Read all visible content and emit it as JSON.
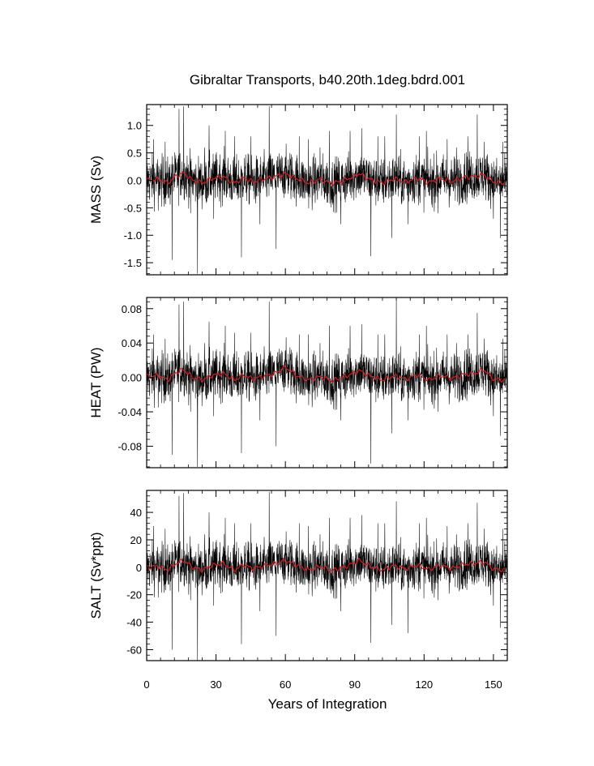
{
  "chart_data": {
    "type": "line",
    "title": "Gibraltar Transports, b40.20th.1deg.bdrd.001",
    "xlabel": "Years of Integration",
    "xlim": [
      0,
      156
    ],
    "x_ticks": [
      0,
      30,
      60,
      90,
      120,
      150
    ],
    "x_tick_labels": [
      "0",
      "30",
      "60",
      "90",
      "120",
      "150"
    ],
    "grid": false,
    "colors": {
      "raw": "#000000",
      "smoothed": "#e0191c"
    },
    "panels": [
      {
        "ylabel": "MASS (Sv)",
        "ylim": [
          -1.72,
          1.38
        ],
        "y_ticks": [
          -1.5,
          -1.0,
          -0.5,
          0.0,
          0.5,
          1.0
        ],
        "y_tick_labels": [
          "-1.5",
          "-1.0",
          "-0.5",
          "0.0",
          "0.5",
          "1.0"
        ],
        "raw_noise_amplitude": 0.22,
        "smooth_key_points": [
          [
            0,
            0.0
          ],
          [
            5,
            0.02
          ],
          [
            9,
            -0.05
          ],
          [
            13,
            0.08
          ],
          [
            16,
            0.13
          ],
          [
            20,
            0.0
          ],
          [
            24,
            -0.05
          ],
          [
            28,
            0.03
          ],
          [
            33,
            0.07
          ],
          [
            38,
            -0.05
          ],
          [
            42,
            0.05
          ],
          [
            46,
            -0.03
          ],
          [
            50,
            0.02
          ],
          [
            55,
            0.06
          ],
          [
            60,
            0.12
          ],
          [
            65,
            0.03
          ],
          [
            70,
            -0.05
          ],
          [
            75,
            0.02
          ],
          [
            80,
            -0.06
          ],
          [
            86,
            0.01
          ],
          [
            92,
            0.12
          ],
          [
            97,
            0.01
          ],
          [
            102,
            -0.05
          ],
          [
            107,
            0.03
          ],
          [
            112,
            -0.03
          ],
          [
            117,
            0.04
          ],
          [
            122,
            -0.04
          ],
          [
            127,
            0.03
          ],
          [
            132,
            -0.02
          ],
          [
            137,
            0.05
          ],
          [
            142,
            0.07
          ],
          [
            146,
            0.1
          ],
          [
            150,
            -0.03
          ],
          [
            155,
            -0.05
          ]
        ],
        "spikes": [
          [
            3,
            0.75
          ],
          [
            5,
            -0.55
          ],
          [
            8,
            0.7
          ],
          [
            11,
            -1.45
          ],
          [
            14,
            1.3
          ],
          [
            16,
            1.35
          ],
          [
            19,
            -0.6
          ],
          [
            22,
            -1.7
          ],
          [
            25,
            0.6
          ],
          [
            27,
            1.0
          ],
          [
            29,
            -0.7
          ],
          [
            34,
            0.9
          ],
          [
            38,
            0.8
          ],
          [
            41,
            -1.4
          ],
          [
            45,
            0.8
          ],
          [
            49,
            -0.8
          ],
          [
            53,
            1.35
          ],
          [
            56,
            -1.25
          ],
          [
            62,
            0.5
          ],
          [
            66,
            0.8
          ],
          [
            70,
            0.75
          ],
          [
            75,
            0.6
          ],
          [
            79,
            0.9
          ],
          [
            84,
            -0.8
          ],
          [
            88,
            0.9
          ],
          [
            93,
            0.95
          ],
          [
            97,
            -1.38
          ],
          [
            100,
            0.8
          ],
          [
            103,
            0.8
          ],
          [
            106,
            -1.05
          ],
          [
            108,
            1.2
          ],
          [
            113,
            -0.8
          ],
          [
            118,
            0.8
          ],
          [
            121,
            0.9
          ],
          [
            126,
            -0.6
          ],
          [
            130,
            0.75
          ],
          [
            134,
            0.6
          ],
          [
            139,
            0.8
          ],
          [
            143,
            1.2
          ],
          [
            146,
            0.7
          ],
          [
            150,
            -0.7
          ],
          [
            153,
            -1.05
          ],
          [
            154,
            0.7
          ]
        ]
      },
      {
        "ylabel": "HEAT (PW)",
        "ylim": [
          -0.105,
          0.093
        ],
        "y_ticks": [
          -0.08,
          -0.04,
          0.0,
          0.04,
          0.08
        ],
        "y_tick_labels": [
          "-0.08",
          "-0.04",
          "0.00",
          "0.04",
          "0.08"
        ],
        "raw_noise_amplitude": 0.014,
        "smooth_key_points": [
          [
            0,
            0.001
          ],
          [
            5,
            0.002
          ],
          [
            9,
            -0.003
          ],
          [
            13,
            0.006
          ],
          [
            16,
            0.009
          ],
          [
            20,
            0.0
          ],
          [
            24,
            -0.003
          ],
          [
            28,
            0.002
          ],
          [
            33,
            0.005
          ],
          [
            38,
            -0.003
          ],
          [
            42,
            0.003
          ],
          [
            46,
            -0.002
          ],
          [
            50,
            0.001
          ],
          [
            55,
            0.004
          ],
          [
            60,
            0.012
          ],
          [
            65,
            0.002
          ],
          [
            70,
            -0.003
          ],
          [
            75,
            0.001
          ],
          [
            80,
            -0.004
          ],
          [
            86,
            0.001
          ],
          [
            92,
            0.008
          ],
          [
            97,
            0.001
          ],
          [
            102,
            -0.003
          ],
          [
            107,
            0.002
          ],
          [
            112,
            -0.002
          ],
          [
            117,
            0.003
          ],
          [
            122,
            -0.003
          ],
          [
            127,
            0.002
          ],
          [
            132,
            -0.001
          ],
          [
            137,
            0.003
          ],
          [
            142,
            0.005
          ],
          [
            146,
            0.009
          ],
          [
            150,
            -0.002
          ],
          [
            155,
            -0.003
          ]
        ],
        "spikes": [
          [
            3,
            0.05
          ],
          [
            5,
            -0.035
          ],
          [
            8,
            0.045
          ],
          [
            11,
            -0.09
          ],
          [
            14,
            0.085
          ],
          [
            16,
            0.088
          ],
          [
            19,
            -0.04
          ],
          [
            22,
            -0.104
          ],
          [
            25,
            0.04
          ],
          [
            27,
            0.065
          ],
          [
            29,
            -0.045
          ],
          [
            34,
            0.06
          ],
          [
            38,
            0.052
          ],
          [
            41,
            -0.088
          ],
          [
            45,
            0.052
          ],
          [
            49,
            -0.05
          ],
          [
            53,
            0.088
          ],
          [
            56,
            -0.08
          ],
          [
            62,
            0.035
          ],
          [
            66,
            0.05
          ],
          [
            70,
            0.05
          ],
          [
            75,
            0.04
          ],
          [
            79,
            0.06
          ],
          [
            84,
            -0.05
          ],
          [
            88,
            0.06
          ],
          [
            93,
            0.062
          ],
          [
            97,
            -0.1
          ],
          [
            100,
            0.05
          ],
          [
            103,
            0.05
          ],
          [
            106,
            -0.065
          ],
          [
            108,
            0.092
          ],
          [
            113,
            -0.05
          ],
          [
            118,
            0.05
          ],
          [
            121,
            0.06
          ],
          [
            126,
            -0.04
          ],
          [
            130,
            0.05
          ],
          [
            134,
            0.04
          ],
          [
            139,
            0.05
          ],
          [
            143,
            0.075
          ],
          [
            146,
            0.045
          ],
          [
            150,
            -0.045
          ],
          [
            153,
            -0.068
          ],
          [
            154,
            0.045
          ]
        ]
      },
      {
        "ylabel": "SALT (Sv*ppt)",
        "ylim": [
          -68,
          56
        ],
        "y_ticks": [
          -60,
          -40,
          -20,
          0,
          20,
          40
        ],
        "y_tick_labels": [
          "-60",
          "-40",
          "-20",
          "0",
          "20",
          "40"
        ],
        "raw_noise_amplitude": 8.5,
        "smooth_key_points": [
          [
            0,
            0.0
          ],
          [
            5,
            0.8
          ],
          [
            9,
            -2.0
          ],
          [
            13,
            3.0
          ],
          [
            16,
            5.0
          ],
          [
            20,
            0.0
          ],
          [
            24,
            -2.0
          ],
          [
            28,
            1.2
          ],
          [
            33,
            2.8
          ],
          [
            38,
            -2.0
          ],
          [
            42,
            2.0
          ],
          [
            46,
            -1.2
          ],
          [
            50,
            0.8
          ],
          [
            55,
            2.4
          ],
          [
            60,
            5.0
          ],
          [
            65,
            1.2
          ],
          [
            70,
            -2.0
          ],
          [
            75,
            0.8
          ],
          [
            80,
            -2.4
          ],
          [
            86,
            0.4
          ],
          [
            92,
            5.0
          ],
          [
            97,
            0.4
          ],
          [
            102,
            -2.0
          ],
          [
            107,
            1.2
          ],
          [
            112,
            -1.2
          ],
          [
            117,
            1.6
          ],
          [
            122,
            -1.6
          ],
          [
            127,
            1.2
          ],
          [
            132,
            -0.8
          ],
          [
            137,
            2.0
          ],
          [
            142,
            2.8
          ],
          [
            146,
            4.0
          ],
          [
            150,
            -1.2
          ],
          [
            155,
            -2.0
          ]
        ],
        "spikes": [
          [
            3,
            30
          ],
          [
            5,
            -22
          ],
          [
            8,
            28
          ],
          [
            11,
            -60
          ],
          [
            14,
            52
          ],
          [
            16,
            54
          ],
          [
            19,
            -24
          ],
          [
            22,
            -68
          ],
          [
            25,
            24
          ],
          [
            27,
            40
          ],
          [
            29,
            -28
          ],
          [
            34,
            36
          ],
          [
            38,
            32
          ],
          [
            41,
            -56
          ],
          [
            45,
            32
          ],
          [
            49,
            -32
          ],
          [
            53,
            55
          ],
          [
            56,
            -50
          ],
          [
            62,
            20
          ],
          [
            66,
            32
          ],
          [
            70,
            30
          ],
          [
            75,
            24
          ],
          [
            79,
            36
          ],
          [
            84,
            -32
          ],
          [
            88,
            36
          ],
          [
            93,
            38
          ],
          [
            97,
            -55
          ],
          [
            100,
            32
          ],
          [
            103,
            32
          ],
          [
            106,
            -42
          ],
          [
            108,
            48
          ],
          [
            113,
            -48
          ],
          [
            118,
            32
          ],
          [
            121,
            36
          ],
          [
            126,
            -24
          ],
          [
            130,
            30
          ],
          [
            134,
            24
          ],
          [
            139,
            32
          ],
          [
            143,
            47
          ],
          [
            146,
            28
          ],
          [
            150,
            -28
          ],
          [
            153,
            -44
          ],
          [
            154,
            28
          ]
        ]
      }
    ]
  }
}
